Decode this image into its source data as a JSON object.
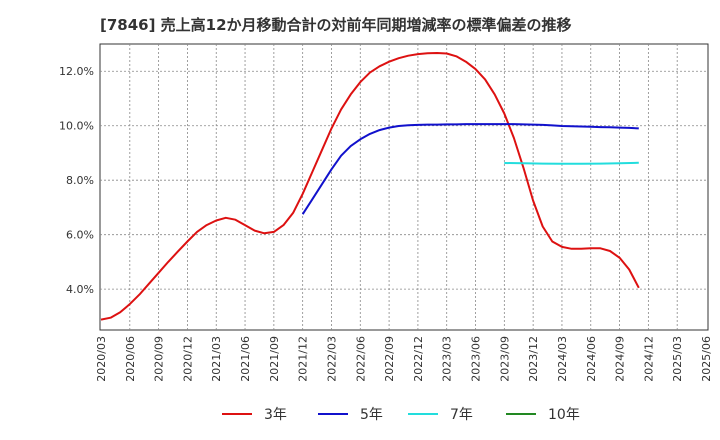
{
  "chart_data": {
    "type": "line",
    "title": "[7846]  売上高12か月移動合計の対前年同期増減率の標準偏差の推移",
    "xlabel": "",
    "ylabel": "",
    "x_ticks": [
      "2020/03",
      "2020/06",
      "2020/09",
      "2020/12",
      "2021/03",
      "2021/06",
      "2021/09",
      "2021/12",
      "2022/03",
      "2022/06",
      "2022/09",
      "2022/12",
      "2023/03",
      "2023/06",
      "2023/09",
      "2023/12",
      "2024/03",
      "2024/06",
      "2024/09",
      "2024/12",
      "2025/03",
      "2025/06"
    ],
    "y_ticks": [
      "4.0%",
      "6.0%",
      "8.0%",
      "10.0%",
      "12.0%"
    ],
    "ylim": [
      2.5,
      13.0
    ],
    "grid": true,
    "legend_position": "bottom",
    "series": [
      {
        "name": "3年",
        "color": "#dd1111",
        "points": [
          [
            "2020/03",
            2.88
          ],
          [
            "2020/04",
            2.95
          ],
          [
            "2020/05",
            3.15
          ],
          [
            "2020/06",
            3.45
          ],
          [
            "2020/07",
            3.8
          ],
          [
            "2020/08",
            4.2
          ],
          [
            "2020/09",
            4.6
          ],
          [
            "2020/10",
            5.0
          ],
          [
            "2020/11",
            5.38
          ],
          [
            "2020/12",
            5.75
          ],
          [
            "2021/01",
            6.1
          ],
          [
            "2021/02",
            6.35
          ],
          [
            "2021/03",
            6.52
          ],
          [
            "2021/04",
            6.62
          ],
          [
            "2021/05",
            6.55
          ],
          [
            "2021/06",
            6.35
          ],
          [
            "2021/07",
            6.15
          ],
          [
            "2021/08",
            6.05
          ],
          [
            "2021/09",
            6.1
          ],
          [
            "2021/10",
            6.35
          ],
          [
            "2021/11",
            6.8
          ],
          [
            "2021/12",
            7.5
          ],
          [
            "2022/01",
            8.3
          ],
          [
            "2022/02",
            9.1
          ],
          [
            "2022/03",
            9.9
          ],
          [
            "2022/04",
            10.6
          ],
          [
            "2022/05",
            11.15
          ],
          [
            "2022/06",
            11.6
          ],
          [
            "2022/07",
            11.95
          ],
          [
            "2022/08",
            12.18
          ],
          [
            "2022/09",
            12.35
          ],
          [
            "2022/10",
            12.48
          ],
          [
            "2022/11",
            12.57
          ],
          [
            "2022/12",
            12.63
          ],
          [
            "2023/01",
            12.66
          ],
          [
            "2023/02",
            12.67
          ],
          [
            "2023/03",
            12.65
          ],
          [
            "2023/04",
            12.55
          ],
          [
            "2023/05",
            12.35
          ],
          [
            "2023/06",
            12.08
          ],
          [
            "2023/07",
            11.7
          ],
          [
            "2023/08",
            11.15
          ],
          [
            "2023/09",
            10.45
          ],
          [
            "2023/10",
            9.55
          ],
          [
            "2023/11",
            8.45
          ],
          [
            "2023/12",
            7.25
          ],
          [
            "2024/01",
            6.3
          ],
          [
            "2024/02",
            5.75
          ],
          [
            "2024/03",
            5.55
          ],
          [
            "2024/04",
            5.48
          ],
          [
            "2024/05",
            5.48
          ],
          [
            "2024/06",
            5.5
          ],
          [
            "2024/07",
            5.5
          ],
          [
            "2024/08",
            5.4
          ],
          [
            "2024/09",
            5.15
          ],
          [
            "2024/10",
            4.72
          ],
          [
            "2024/11",
            4.05
          ]
        ]
      },
      {
        "name": "5年",
        "color": "#1111cc",
        "points": [
          [
            "2021/12",
            6.75
          ],
          [
            "2022/01",
            7.3
          ],
          [
            "2022/02",
            7.85
          ],
          [
            "2022/03",
            8.4
          ],
          [
            "2022/04",
            8.9
          ],
          [
            "2022/05",
            9.25
          ],
          [
            "2022/06",
            9.5
          ],
          [
            "2022/07",
            9.7
          ],
          [
            "2022/08",
            9.84
          ],
          [
            "2022/09",
            9.93
          ],
          [
            "2022/10",
            9.99
          ],
          [
            "2022/11",
            10.02
          ],
          [
            "2022/12",
            10.03
          ],
          [
            "2023/01",
            10.04
          ],
          [
            "2023/02",
            10.04
          ],
          [
            "2023/03",
            10.05
          ],
          [
            "2023/04",
            10.05
          ],
          [
            "2023/05",
            10.06
          ],
          [
            "2023/06",
            10.06
          ],
          [
            "2023/07",
            10.06
          ],
          [
            "2023/08",
            10.06
          ],
          [
            "2023/09",
            10.06
          ],
          [
            "2023/10",
            10.06
          ],
          [
            "2023/11",
            10.05
          ],
          [
            "2023/12",
            10.04
          ],
          [
            "2024/01",
            10.03
          ],
          [
            "2024/02",
            10.01
          ],
          [
            "2024/03",
            9.99
          ],
          [
            "2024/04",
            9.98
          ],
          [
            "2024/05",
            9.97
          ],
          [
            "2024/06",
            9.96
          ],
          [
            "2024/07",
            9.95
          ],
          [
            "2024/08",
            9.94
          ],
          [
            "2024/09",
            9.93
          ],
          [
            "2024/10",
            9.92
          ],
          [
            "2024/11",
            9.9
          ]
        ]
      },
      {
        "name": "7年",
        "color": "#22dddd",
        "points": [
          [
            "2023/09",
            8.63
          ],
          [
            "2023/11",
            8.62
          ],
          [
            "2024/01",
            8.61
          ],
          [
            "2024/03",
            8.6
          ],
          [
            "2024/05",
            8.6
          ],
          [
            "2024/07",
            8.61
          ],
          [
            "2024/09",
            8.62
          ],
          [
            "2024/11",
            8.64
          ]
        ]
      },
      {
        "name": "10年",
        "color": "#228822",
        "points": []
      }
    ]
  }
}
